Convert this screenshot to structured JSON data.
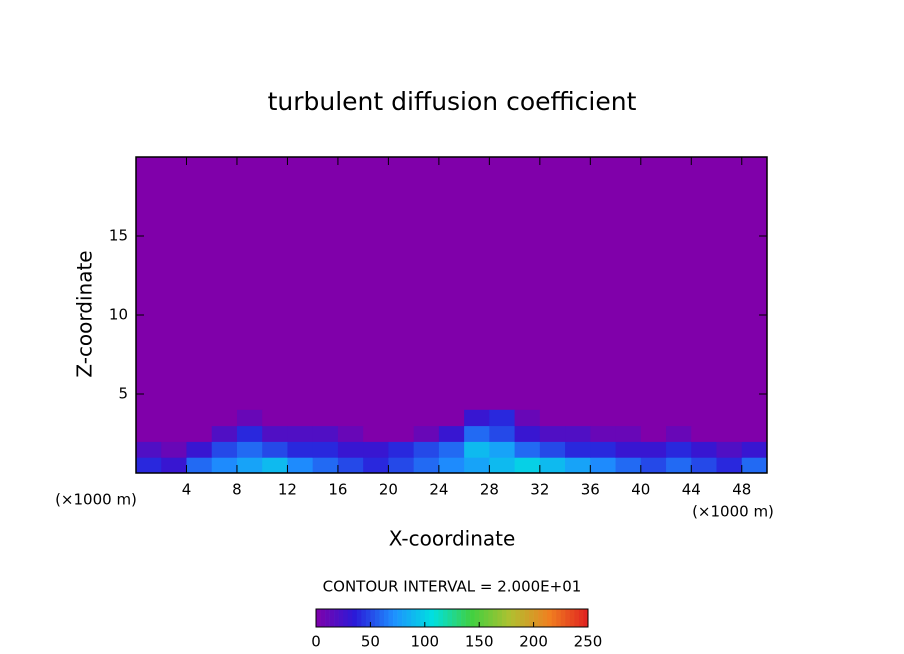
{
  "chart_data": {
    "type": "heatmap",
    "title": "turbulent diffusion coefficient",
    "x_label": "X-coordinate",
    "y_label": "Z-coordinate",
    "x_unit_label": "(×1000 m)",
    "y_unit_label": "(×1000 m)",
    "annotation": "CONTOUR INTERVAL = 2.000E+01",
    "xlim": [
      0,
      50
    ],
    "ylim": [
      0,
      20
    ],
    "xticks": [
      4,
      8,
      12,
      16,
      20,
      24,
      28,
      32,
      36,
      40,
      44,
      48
    ],
    "yticks": [
      5,
      10,
      15
    ],
    "x_edges": [
      0,
      2,
      4,
      6,
      8,
      10,
      12,
      14,
      16,
      18,
      20,
      22,
      24,
      26,
      28,
      30,
      32,
      34,
      36,
      38,
      40,
      42,
      44,
      46,
      48,
      50
    ],
    "y_edges": [
      0,
      1,
      2,
      3,
      4
    ],
    "values": [
      [
        40,
        30,
        60,
        70,
        80,
        90,
        70,
        60,
        50,
        40,
        50,
        60,
        70,
        80,
        90,
        100,
        90,
        80,
        70,
        60,
        50,
        60,
        50,
        40,
        60
      ],
      [
        20,
        10,
        30,
        50,
        60,
        50,
        40,
        40,
        30,
        30,
        40,
        50,
        60,
        90,
        80,
        60,
        50,
        40,
        40,
        30,
        30,
        40,
        30,
        20,
        30
      ],
      [
        0,
        0,
        0,
        20,
        40,
        20,
        20,
        20,
        10,
        0,
        0,
        10,
        30,
        60,
        50,
        30,
        20,
        20,
        10,
        10,
        0,
        10,
        0,
        0,
        0
      ],
      [
        0,
        0,
        0,
        0,
        10,
        0,
        0,
        0,
        0,
        0,
        0,
        0,
        0,
        30,
        40,
        10,
        0,
        0,
        0,
        0,
        0,
        0,
        0,
        0,
        0
      ]
    ],
    "clim": [
      0,
      250
    ],
    "colorbar_ticks": [
      0,
      50,
      100,
      150,
      200,
      250
    ],
    "colormap": [
      "#8000aa",
      "#2a1ad8",
      "#1e90ff",
      "#00e0e0",
      "#40d040",
      "#b0c030",
      "#f08020",
      "#e02020"
    ],
    "background": "#8000aa"
  }
}
